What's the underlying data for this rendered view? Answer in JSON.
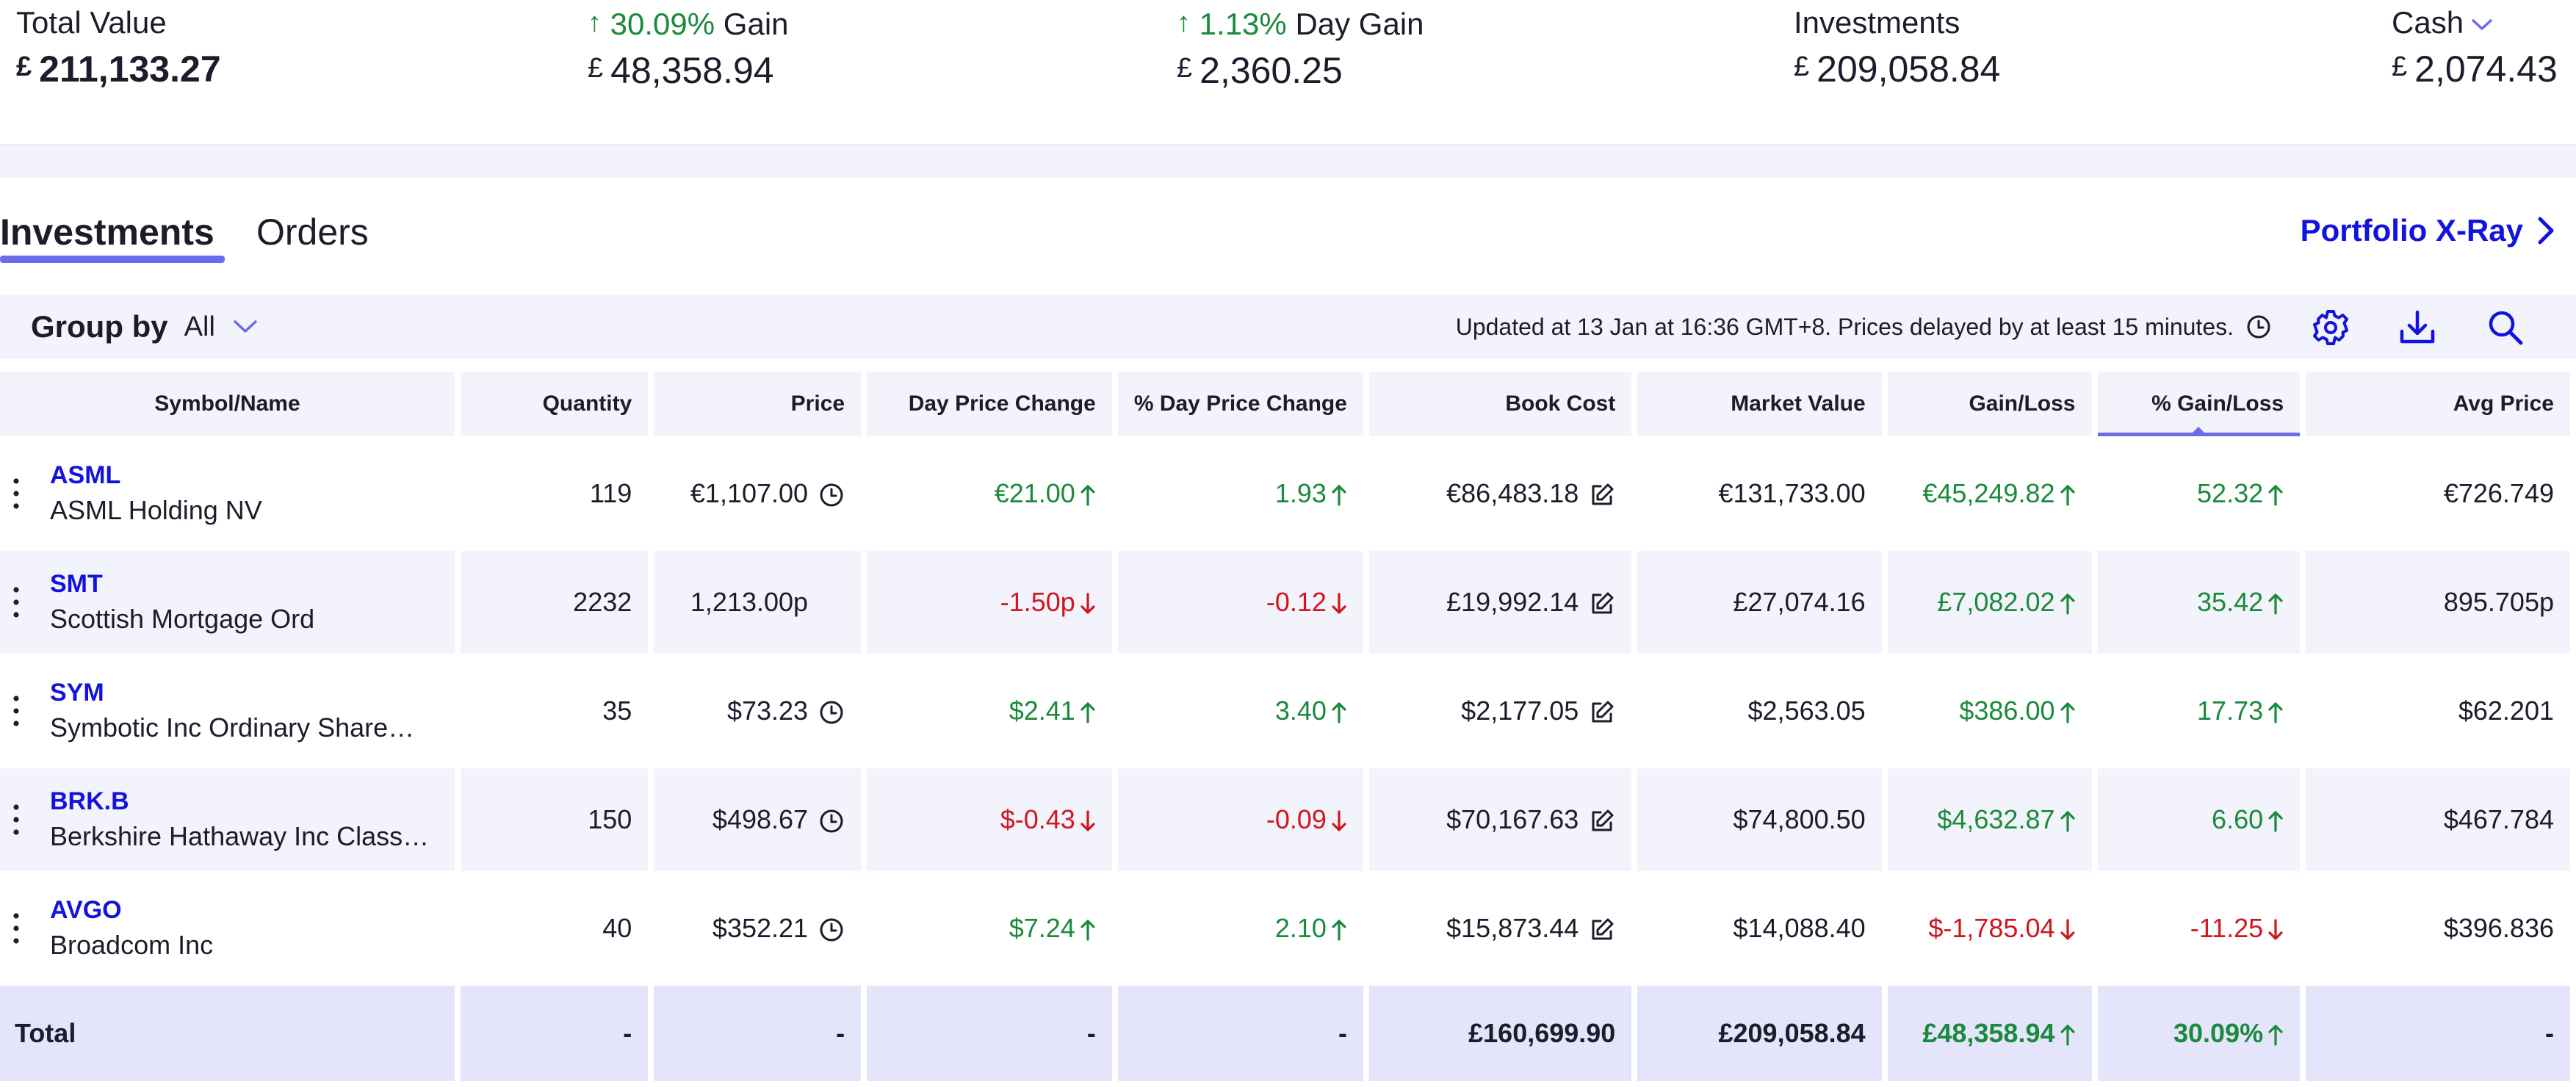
{
  "summary": {
    "total_value": {
      "label": "Total Value",
      "currency": "£",
      "value": "211,133.27"
    },
    "gain": {
      "pct": "30.09%",
      "label": "Gain",
      "currency": "£",
      "value": "48,358.94"
    },
    "day_gain": {
      "pct": "1.13%",
      "label": "Day Gain",
      "currency": "£",
      "value": "2,360.25"
    },
    "investments": {
      "label": "Investments",
      "currency": "£",
      "value": "209,058.84"
    },
    "cash": {
      "label": "Cash",
      "currency": "£",
      "value": "2,074.43"
    }
  },
  "tabs": [
    {
      "label": "Investments",
      "active": true
    },
    {
      "label": "Orders",
      "active": false
    }
  ],
  "portfolio_xray": "Portfolio X-Ray",
  "toolbar": {
    "group_by_label": "Group by",
    "group_by_value": "All",
    "updated_text": "Updated at 13 Jan at 16:36 GMT+8. Prices delayed by at least 15 minutes."
  },
  "icons": {
    "settings": "gear-icon",
    "download": "download-icon",
    "search": "search-icon",
    "clock": "clock-icon",
    "edit": "edit-icon",
    "menu": "kebab-menu-icon"
  },
  "colors": {
    "accent": "#1313e0",
    "positive": "#1a8a3c",
    "negative": "#d0161f",
    "highlight": "#6b6bec"
  },
  "table": {
    "columns": [
      "Symbol/Name",
      "Quantity",
      "Price",
      "Day Price Change",
      "% Day Price Change",
      "Book Cost",
      "Market Value",
      "Gain/Loss",
      "% Gain/Loss",
      "Avg Price"
    ],
    "sorted_column": "% Gain/Loss",
    "rows": [
      {
        "symbol": "ASML",
        "name": "ASML Holding NV",
        "quantity": "119",
        "price": "€1,107.00",
        "price_delayed": true,
        "day_change": "€21.00",
        "day_change_dir": "up",
        "day_pct": "1.93",
        "day_pct_dir": "up",
        "book_cost": "€86,483.18",
        "market_value": "€131,733.00",
        "gain_loss": "€45,249.82",
        "gain_dir": "up",
        "gain_pct": "52.32",
        "gain_pct_dir": "up",
        "avg_price": "€726.749"
      },
      {
        "symbol": "SMT",
        "name": "Scottish Mortgage Ord",
        "quantity": "2232",
        "price": "1,213.00p",
        "price_delayed": false,
        "day_change": "-1.50p",
        "day_change_dir": "down",
        "day_pct": "-0.12",
        "day_pct_dir": "down",
        "book_cost": "£19,992.14",
        "market_value": "£27,074.16",
        "gain_loss": "£7,082.02",
        "gain_dir": "up",
        "gain_pct": "35.42",
        "gain_pct_dir": "up",
        "avg_price": "895.705p"
      },
      {
        "symbol": "SYM",
        "name": "Symbotic Inc Ordinary Share…",
        "quantity": "35",
        "price": "$73.23",
        "price_delayed": true,
        "day_change": "$2.41",
        "day_change_dir": "up",
        "day_pct": "3.40",
        "day_pct_dir": "up",
        "book_cost": "$2,177.05",
        "market_value": "$2,563.05",
        "gain_loss": "$386.00",
        "gain_dir": "up",
        "gain_pct": "17.73",
        "gain_pct_dir": "up",
        "avg_price": "$62.201"
      },
      {
        "symbol": "BRK.B",
        "name": "Berkshire Hathaway Inc Class…",
        "quantity": "150",
        "price": "$498.67",
        "price_delayed": true,
        "day_change": "$-0.43",
        "day_change_dir": "down",
        "day_pct": "-0.09",
        "day_pct_dir": "down",
        "book_cost": "$70,167.63",
        "market_value": "$74,800.50",
        "gain_loss": "$4,632.87",
        "gain_dir": "up",
        "gain_pct": "6.60",
        "gain_pct_dir": "up",
        "avg_price": "$467.784"
      },
      {
        "symbol": "AVGO",
        "name": "Broadcom Inc",
        "quantity": "40",
        "price": "$352.21",
        "price_delayed": true,
        "day_change": "$7.24",
        "day_change_dir": "up",
        "day_pct": "2.10",
        "day_pct_dir": "up",
        "book_cost": "$15,873.44",
        "market_value": "$14,088.40",
        "gain_loss": "$-1,785.04",
        "gain_dir": "down",
        "gain_pct": "-11.25",
        "gain_pct_dir": "down",
        "avg_price": "$396.836"
      }
    ],
    "total": {
      "label": "Total",
      "quantity": "-",
      "price": "-",
      "day_change": "-",
      "day_pct": "-",
      "book_cost": "£160,699.90",
      "market_value": "£209,058.84",
      "gain_loss": "£48,358.94",
      "gain_dir": "up",
      "gain_pct": "30.09%",
      "gain_pct_dir": "up",
      "avg_price": "-"
    }
  }
}
